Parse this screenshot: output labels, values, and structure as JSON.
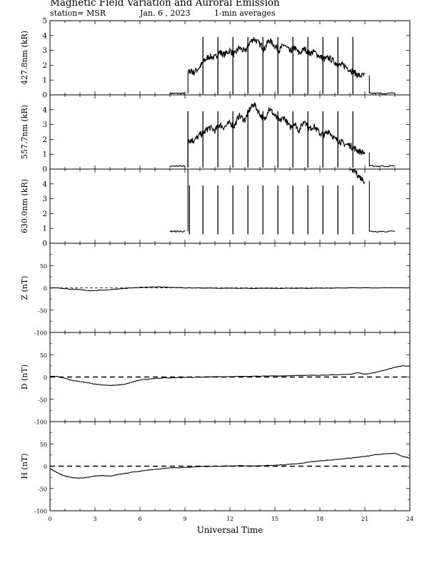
{
  "header": {
    "title": "Magnetic Field Variation and Auroral Emission",
    "station": "station= MSR",
    "date": "Jan. 6 , 2023",
    "averaging": "1-min averages"
  },
  "chart_data": [
    {
      "type": "line",
      "ylabel": "427.8nm (kR)",
      "xlim": [
        0,
        24
      ],
      "ylim": [
        0,
        5
      ],
      "yticks": [
        0,
        1,
        2,
        3,
        4,
        5
      ],
      "x": [
        8,
        8.5,
        9,
        9.2,
        9.4,
        9.6,
        10,
        10.3,
        10.6,
        11,
        11.3,
        11.6,
        12,
        12.3,
        12.6,
        13,
        13.3,
        13.6,
        14,
        14.3,
        14.6,
        15,
        15.3,
        15.6,
        16,
        16.3,
        16.6,
        17,
        17.3,
        17.6,
        18,
        18.3,
        18.6,
        19,
        19.3,
        19.6,
        20,
        20.3,
        20.6,
        21,
        21.3,
        22,
        23
      ],
      "values": [
        0.1,
        0.1,
        0.1,
        1.5,
        1.6,
        1.5,
        1.9,
        2.3,
        2.6,
        2.5,
        2.9,
        2.7,
        3.0,
        2.7,
        3.2,
        2.9,
        3.5,
        3.8,
        3.4,
        3.1,
        3.7,
        3.3,
        3.0,
        3.4,
        2.9,
        3.2,
        2.8,
        3.1,
        2.8,
        2.9,
        2.6,
        2.4,
        2.5,
        2.2,
        2.0,
        2.0,
        1.7,
        1.5,
        1.3,
        1.3,
        0.1,
        0.1,
        0.1
      ],
      "gaps": [
        [
          9.0,
          9.2
        ],
        [
          21.0,
          21.3
        ]
      ],
      "spike_times": [
        10.2,
        11.2,
        12.2,
        13.2,
        14.2,
        15.2,
        16.2,
        17.2,
        18.2,
        19.2,
        20.2
      ],
      "spike_base": 0.05
    },
    {
      "type": "line",
      "ylabel": "557.7nm (kR)",
      "xlim": [
        0,
        24
      ],
      "ylim": [
        0,
        5
      ],
      "yticks": [
        0,
        1,
        2,
        3,
        4
      ],
      "x": [
        8,
        8.5,
        9,
        9.2,
        9.4,
        9.6,
        10,
        10.3,
        10.6,
        11,
        11.3,
        11.6,
        12,
        12.3,
        12.6,
        13,
        13.3,
        13.6,
        14,
        14.3,
        14.6,
        15,
        15.3,
        15.6,
        16,
        16.3,
        16.6,
        17,
        17.3,
        17.6,
        18,
        18.3,
        18.6,
        19,
        19.3,
        19.6,
        20,
        20.3,
        20.6,
        21,
        21.3,
        22,
        23
      ],
      "values": [
        0.2,
        0.2,
        0.2,
        1.8,
        2.0,
        1.9,
        2.3,
        2.5,
        2.8,
        2.6,
        3.0,
        2.8,
        3.1,
        2.9,
        3.6,
        3.3,
        4.0,
        4.4,
        3.7,
        3.3,
        4.1,
        3.6,
        3.2,
        3.5,
        2.8,
        3.1,
        2.6,
        3.3,
        2.7,
        2.9,
        2.4,
        2.3,
        2.6,
        2.0,
        1.9,
        1.7,
        1.6,
        1.4,
        1.2,
        1.1,
        0.2,
        0.2,
        0.2
      ],
      "gaps": [
        [
          9.0,
          9.2
        ],
        [
          21.0,
          21.3
        ]
      ],
      "spike_times": [
        9.2,
        10.2,
        11.2,
        12.2,
        13.2,
        14.2,
        15.2,
        16.2,
        17.2,
        18.2,
        19.2,
        20.2
      ],
      "spike_base": 0.1
    },
    {
      "type": "line",
      "ylabel": "630.0nm (kR)",
      "xlim": [
        0,
        24
      ],
      "ylim": [
        0,
        5
      ],
      "yticks": [
        0,
        1,
        2,
        3,
        4
      ],
      "x": [
        8,
        8.5,
        9,
        9.2,
        9.4,
        9.6,
        10,
        10.3,
        10.6,
        11,
        11.3,
        11.6,
        12,
        12.3,
        12.6,
        13,
        13.3,
        13.6,
        14,
        14.3,
        14.6,
        15,
        15.3,
        15.6,
        16,
        16.3,
        16.6,
        17,
        17.3,
        17.6,
        18,
        18.3,
        18.6,
        19,
        19.3,
        19.6,
        20,
        20.3,
        20.6,
        21,
        21.3,
        22,
        23
      ],
      "values": [
        0.8,
        0.8,
        0.8,
        5,
        5,
        5,
        5,
        5,
        5,
        5,
        5,
        5,
        5,
        5,
        5,
        5,
        5,
        5,
        5,
        5,
        5,
        5,
        5,
        5,
        5,
        5,
        5,
        5,
        5,
        5,
        5,
        5,
        5,
        5,
        5,
        5,
        5,
        4.9,
        4.5,
        4.2,
        0.8,
        0.8,
        0.8
      ],
      "gaps": [
        [
          9.0,
          9.2
        ],
        [
          21.0,
          21.3
        ]
      ],
      "spike_times": [
        9.3,
        10.2,
        11.2,
        12.2,
        13.2,
        14.2,
        15.2,
        16.2,
        17.2,
        18.2,
        19.2,
        20.2
      ],
      "spike_base": 0.6
    },
    {
      "type": "line",
      "ylabel": "Z (nT)",
      "xlim": [
        0,
        24
      ],
      "ylim": [
        -100,
        100
      ],
      "yticks": [
        -100,
        -50,
        0,
        50
      ],
      "baseline": 0,
      "baseline_style": "dashed-thin",
      "x": [
        0,
        0.5,
        1,
        1.5,
        2,
        2.5,
        3,
        3.5,
        4,
        5,
        6,
        7,
        8,
        9,
        10,
        12,
        14,
        16,
        18,
        20,
        22,
        24
      ],
      "values": [
        0,
        0,
        -2,
        -3,
        -4,
        -6,
        -6,
        -5,
        -4,
        -1,
        1,
        2,
        1,
        0,
        0,
        -1,
        -1,
        -1,
        -1,
        0,
        0,
        0
      ]
    },
    {
      "type": "line",
      "ylabel": "D (nT)",
      "xlim": [
        0,
        24
      ],
      "ylim": [
        -100,
        100
      ],
      "yticks": [
        -100,
        -50,
        0,
        50
      ],
      "baseline": 0,
      "baseline_style": "dashed",
      "x": [
        0,
        0.5,
        1,
        1.5,
        2,
        2.5,
        3,
        3.5,
        4,
        4.5,
        5,
        5.5,
        6,
        7,
        8,
        9,
        10,
        12,
        14,
        16,
        18,
        20,
        20.5,
        21,
        21.5,
        22,
        22.5,
        23,
        23.5,
        24
      ],
      "values": [
        2,
        1,
        -3,
        -8,
        -10,
        -13,
        -16,
        -18,
        -19,
        -18,
        -16,
        -11,
        -7,
        -3,
        -2,
        -1,
        0,
        1,
        2,
        3,
        4,
        6,
        10,
        6,
        9,
        13,
        17,
        22,
        25,
        24
      ]
    },
    {
      "type": "line",
      "ylabel": "H (nT)",
      "xlim": [
        0,
        24
      ],
      "ylim": [
        -100,
        100
      ],
      "yticks": [
        -100,
        -50,
        0,
        50
      ],
      "baseline": 0,
      "baseline_style": "dashed",
      "xlabel": "Universal Time",
      "xticks": [
        0,
        3,
        6,
        9,
        12,
        15,
        18,
        21,
        24
      ],
      "x": [
        0,
        0.5,
        1,
        1.5,
        2,
        2.5,
        3,
        3.5,
        4,
        4.5,
        5,
        6,
        7,
        8,
        9,
        10,
        11,
        12,
        13,
        14,
        15,
        16,
        17,
        18,
        19,
        20,
        21,
        22,
        23,
        23.5,
        24
      ],
      "values": [
        -5,
        -15,
        -22,
        -26,
        -27,
        -25,
        -22,
        -21,
        -22,
        -19,
        -16,
        -11,
        -7,
        -4,
        -3,
        -1,
        0,
        1,
        1,
        1,
        2,
        4,
        8,
        12,
        15,
        18,
        22,
        27,
        29,
        22,
        18
      ]
    }
  ]
}
